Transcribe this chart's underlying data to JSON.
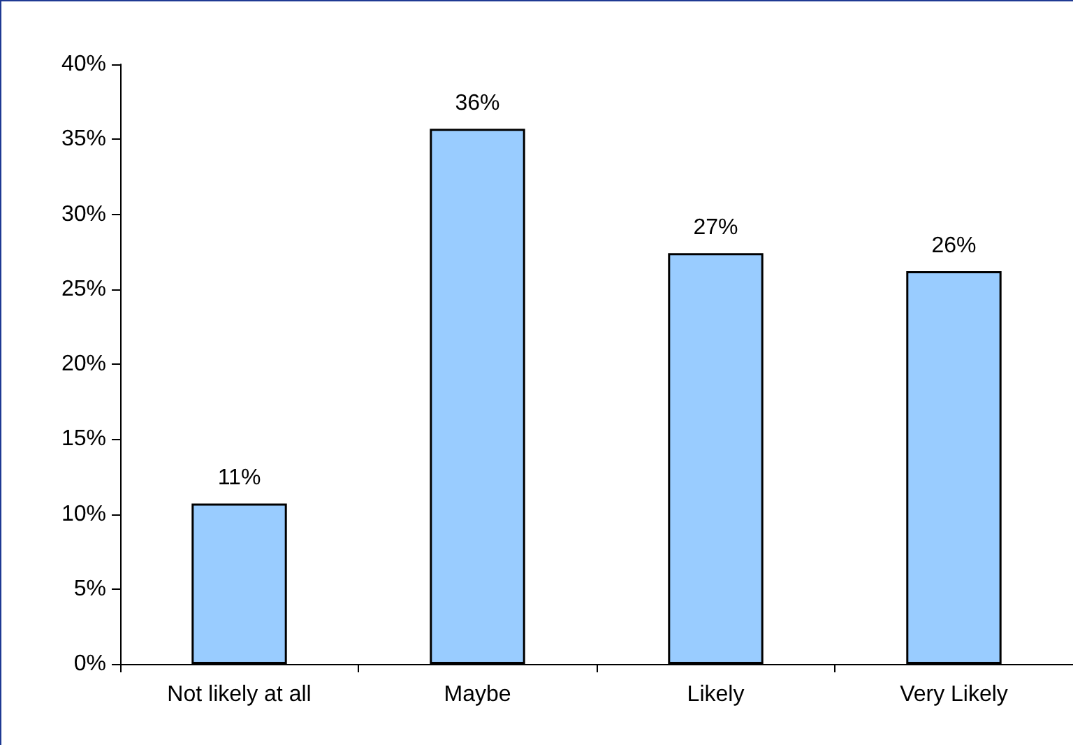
{
  "chart_data": {
    "type": "bar",
    "categories": [
      "Not likely at all",
      "Maybe",
      "Likely",
      "Very Likely"
    ],
    "series": [
      {
        "color": "#99ccff",
        "values": [
          10.7,
          35.7,
          27.4,
          26.2
        ],
        "value_labels": [
          "11%",
          "36%",
          "27%",
          "26%"
        ]
      }
    ],
    "ylim": [
      0,
      40
    ],
    "yticks": [
      {
        "value": 0,
        "label": "0%"
      },
      {
        "value": 5,
        "label": "5%"
      },
      {
        "value": 10,
        "label": "10%"
      },
      {
        "value": 15,
        "label": "15%"
      },
      {
        "value": 20,
        "label": "20%"
      },
      {
        "value": 25,
        "label": "25%"
      },
      {
        "value": 30,
        "label": "30%"
      },
      {
        "value": 35,
        "label": "35%"
      },
      {
        "value": 40,
        "label": "40%"
      }
    ],
    "grid": false
  }
}
